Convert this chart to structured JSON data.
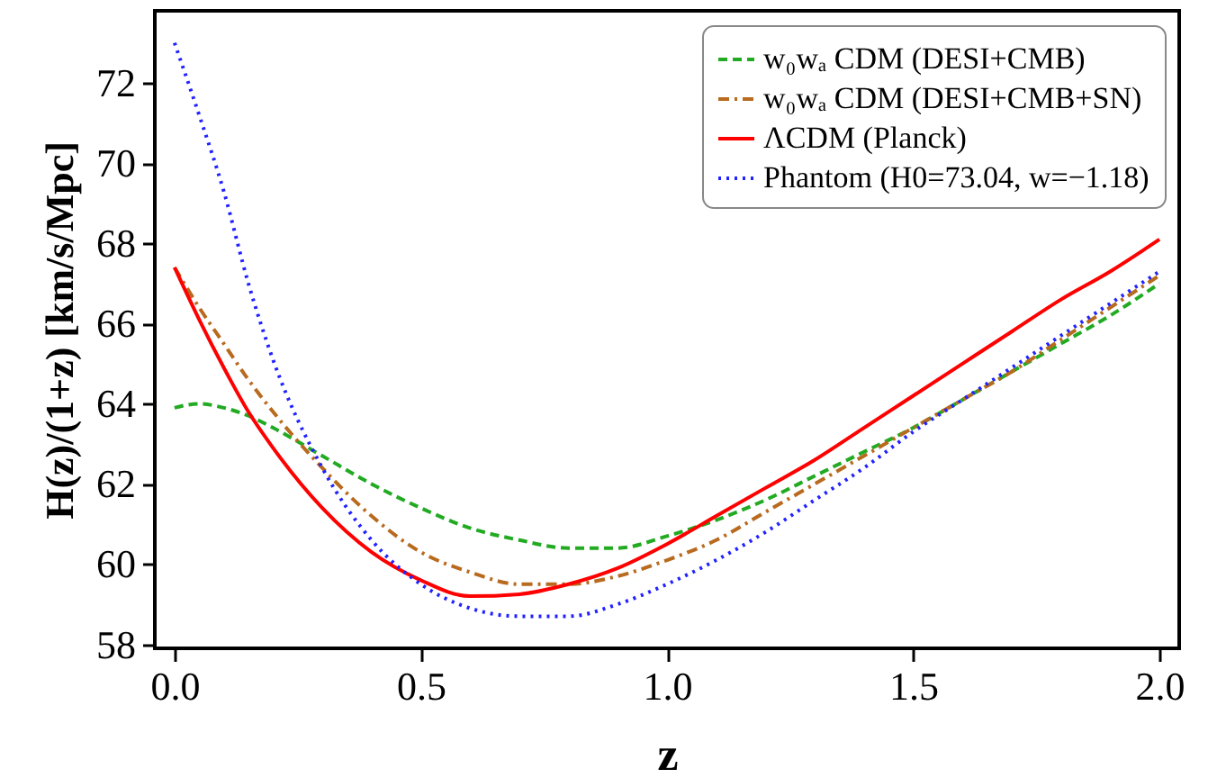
{
  "chart_data": {
    "type": "line",
    "xlabel": "z",
    "ylabel": "H(z)/(1+z) [km/s/Mpc]",
    "x": [
      0,
      0.05,
      0.1,
      0.15,
      0.2,
      0.3,
      0.4,
      0.5,
      0.6,
      0.7,
      0.8,
      0.9,
      1.0,
      1.1,
      1.2,
      1.3,
      1.4,
      1.5,
      1.6,
      1.7,
      1.8,
      1.9,
      2.0
    ],
    "series": [
      {
        "name": "w₀wₐ CDM (DESI+CMB)",
        "color": "#22aa22",
        "line_style": "dashed",
        "values": [
          63.9,
          64.0,
          63.9,
          63.7,
          63.4,
          62.7,
          62.0,
          61.4,
          60.9,
          60.6,
          60.4,
          60.4,
          60.7,
          61.1,
          61.6,
          62.2,
          62.8,
          63.4,
          64.1,
          64.8,
          65.5,
          66.2,
          67.0
        ]
      },
      {
        "name": "w₀wₐ CDM (DESI+CMB+SN)",
        "color": "#b86a1e",
        "line_style": "dashdot",
        "values": [
          67.4,
          66.4,
          65.5,
          64.6,
          63.8,
          62.4,
          61.2,
          60.3,
          59.8,
          59.5,
          59.5,
          59.7,
          60.1,
          60.6,
          61.3,
          62.0,
          62.7,
          63.4,
          64.1,
          64.8,
          65.6,
          66.4,
          67.2
        ]
      },
      {
        "name": "ΛCDM (Planck)",
        "color": "#ff0000",
        "line_style": "solid",
        "values": [
          67.4,
          66.1,
          64.9,
          63.8,
          62.9,
          61.4,
          60.3,
          59.6,
          59.2,
          59.25,
          59.5,
          59.9,
          60.5,
          61.2,
          61.9,
          62.6,
          63.4,
          64.2,
          65.0,
          65.8,
          66.6,
          67.3,
          68.1
        ]
      },
      {
        "name": "Phantom (H0=73.04, w=−1.18)",
        "color": "#2222ff",
        "line_style": "dotted",
        "values": [
          73.0,
          71.2,
          69.3,
          67.0,
          65.1,
          62.4,
          60.6,
          59.5,
          58.9,
          58.7,
          58.7,
          59.0,
          59.5,
          60.1,
          60.8,
          61.6,
          62.4,
          63.3,
          64.1,
          64.9,
          65.7,
          66.5,
          67.3
        ]
      }
    ],
    "xlim": [
      -0.04,
      2.04
    ],
    "ylim": [
      57.9,
      73.8
    ],
    "xticks": [
      {
        "value": 0,
        "label": "0.0"
      },
      {
        "value": 0.5,
        "label": "0.5"
      },
      {
        "value": 1,
        "label": "1.0"
      },
      {
        "value": 1.5,
        "label": "1.5"
      },
      {
        "value": 2,
        "label": "2.0"
      }
    ],
    "yticks": [
      58,
      60,
      62,
      64,
      66,
      68,
      70,
      72
    ],
    "legend": "top right",
    "grid": false
  }
}
